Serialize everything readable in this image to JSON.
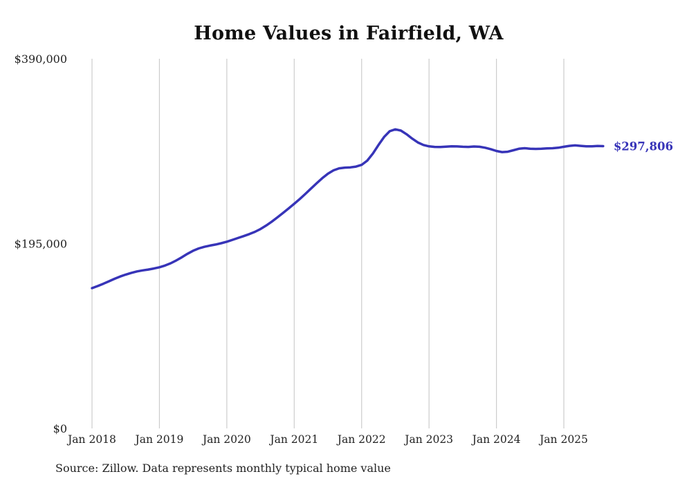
{
  "page": {
    "title": "Home Values in Fairfield, WA",
    "source_note": "Source: Zillow. Data represents monthly typical home value"
  },
  "chart_data": {
    "type": "line",
    "title": "Home Values in Fairfield, WA",
    "xlabel": "",
    "ylabel": "",
    "ylim": [
      0,
      390000
    ],
    "grid": "vertical",
    "legend_position": "none",
    "line_color": "#3734b8",
    "grid_color": "#cccccc",
    "tick_label_color": "#222222",
    "x_start": "Jan 2018",
    "x_end": "Aug 2025",
    "x_tick_labels": [
      "Jan 2018",
      "Jan 2019",
      "Jan 2020",
      "Jan 2021",
      "Jan 2022",
      "Jan 2023",
      "Jan 2024",
      "Jan 2025"
    ],
    "y_ticks": [
      {
        "value": 0,
        "label": "$0"
      },
      {
        "value": 195000,
        "label": "$195,000"
      },
      {
        "value": 390000,
        "label": "$390,000"
      }
    ],
    "end_label": "$297,806",
    "series": [
      {
        "name": "Typical home value",
        "start_month": "2018-01",
        "values": [
          148000,
          150200,
          152600,
          155200,
          157800,
          160200,
          162300,
          164100,
          165600,
          166700,
          167600,
          168700,
          170000,
          171800,
          174200,
          177200,
          180600,
          184200,
          187400,
          189900,
          191600,
          192900,
          194000,
          195400,
          197000,
          198900,
          200900,
          202900,
          205000,
          207400,
          210400,
          214000,
          218100,
          222600,
          227300,
          232100,
          237000,
          242100,
          247500,
          253100,
          258700,
          264000,
          268700,
          272300,
          274400,
          275100,
          275400,
          276200,
          278000,
          282500,
          290000,
          299000,
          307500,
          313500,
          315500,
          314200,
          310300,
          305700,
          301700,
          299000,
          297600,
          297000,
          296900,
          297300,
          297600,
          297500,
          297100,
          297000,
          297400,
          297100,
          296100,
          294600,
          292700,
          291500,
          291900,
          293400,
          295000,
          295600,
          295100,
          294900,
          295000,
          295400,
          295600,
          296100,
          297100,
          298100,
          298600,
          298100,
          297600,
          297600,
          297900,
          297806
        ]
      }
    ]
  }
}
